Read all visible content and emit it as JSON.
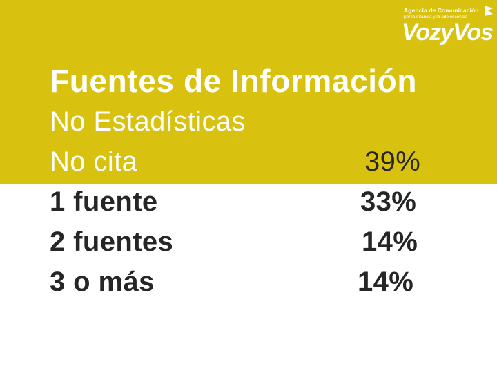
{
  "logo": {
    "tagline": "Agencia de Comunicación",
    "subtagline": "por la infancia y la adolescencia",
    "brand": "VozyVos"
  },
  "slide": {
    "title": "Fuentes de Información",
    "subtitle": "No Estadísticas",
    "rows": [
      {
        "label": "No cita",
        "value": "39%"
      },
      {
        "label": "1 fuente",
        "value": "33%"
      },
      {
        "label": "2 fuentes",
        "value": "14%"
      },
      {
        "label": "3 o más",
        "value": "14%"
      }
    ]
  },
  "colors": {
    "band": "#d9c20f",
    "title_text": "#ffffff",
    "body_text": "#262626"
  }
}
